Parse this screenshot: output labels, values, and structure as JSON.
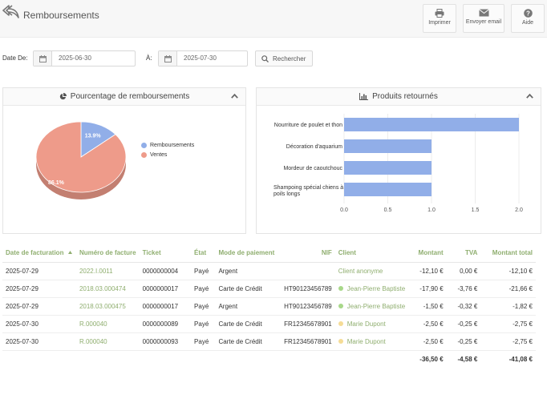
{
  "header": {
    "title": "Remboursements",
    "buttons": [
      {
        "label": "Imprimer",
        "icon": "print-icon"
      },
      {
        "label": "Envoyer email",
        "icon": "envelope-icon"
      },
      {
        "label": "Aide",
        "icon": "help-icon"
      }
    ]
  },
  "filters": {
    "from_label": "Date De:",
    "from_value": "2025-06-30",
    "to_label": "À:",
    "to_value": "2025-07-30",
    "search_label": "Rechercher"
  },
  "pie_panel": {
    "title": "Pourcentage de remboursements",
    "slices": [
      {
        "name": "Remboursements",
        "label": "13.9%",
        "value": 13.9,
        "color": "#91aee8"
      },
      {
        "name": "Ventes",
        "label": "86.1%",
        "value": 86.1,
        "color": "#ee9b8a"
      }
    ]
  },
  "bar_panel": {
    "title": "Produits retournés",
    "categories": [
      "Nourriture de poulet et thon",
      "Décoration d'aquarium",
      "Mordeur de caoutchouc",
      "Shampoing spécial chiens à poils longs"
    ],
    "values": [
      2.0,
      1.0,
      1.0,
      1.0
    ],
    "xticks": [
      "0.0",
      "0.5",
      "1.0",
      "1.5",
      "2.0"
    ],
    "xlim": [
      0,
      2
    ],
    "color": "#91aee8"
  },
  "table": {
    "headers": {
      "date": "Date de facturation",
      "invoice": "Numéro de facture",
      "ticket": "Ticket",
      "state": "État",
      "payment": "Mode de paiement",
      "nif": "NIF",
      "client": "Client",
      "amount": "Montant",
      "tva": "TVA",
      "total": "Montant total"
    },
    "rows": [
      {
        "date": "2025-07-29",
        "invoice": "2022.I.0011",
        "ticket": "0000000004",
        "state": "Payé",
        "payment": "Argent",
        "nif": "",
        "client": "Client anonyme",
        "client_dot": "",
        "amount": "-12,10 €",
        "tva": "0,00 €",
        "total": "-12,10 €"
      },
      {
        "date": "2025-07-29",
        "invoice": "2018.03.000474",
        "ticket": "0000000017",
        "state": "Payé",
        "payment": "Carte de Crédit",
        "nif": "HT90123456789",
        "client": "Jean-Pierre Baptiste",
        "client_dot": "#a8d88a",
        "amount": "-17,90 €",
        "tva": "-3,76 €",
        "total": "-21,66 €"
      },
      {
        "date": "2025-07-29",
        "invoice": "2018.03.000475",
        "ticket": "0000000017",
        "state": "Payé",
        "payment": "Argent",
        "nif": "HT90123456789",
        "client": "Jean-Pierre Baptiste",
        "client_dot": "#a8d88a",
        "amount": "-1,50 €",
        "tva": "-0,32 €",
        "total": "-1,82 €"
      },
      {
        "date": "2025-07-30",
        "invoice": "R.000040",
        "ticket": "0000000089",
        "state": "Payé",
        "payment": "Carte de Crédit",
        "nif": "FR12345678901",
        "client": "Marie Dupont",
        "client_dot": "#f5dc96",
        "amount": "-2,50 €",
        "tva": "-0,25 €",
        "total": "-2,75 €"
      },
      {
        "date": "2025-07-30",
        "invoice": "R.000040",
        "ticket": "0000000093",
        "state": "Payé",
        "payment": "Carte de Crédit",
        "nif": "FR12345678901",
        "client": "Marie Dupont",
        "client_dot": "#f5dc96",
        "amount": "-2,50 €",
        "tva": "-0,25 €",
        "total": "-2,75 €"
      }
    ],
    "totals": {
      "amount": "-36,50 €",
      "tva": "-4,58 €",
      "total": "-41,08 €"
    }
  },
  "colors": {
    "accent_green": "#8fae6f",
    "pie_blue": "#91aee8",
    "pie_red": "#ee9b8a"
  }
}
